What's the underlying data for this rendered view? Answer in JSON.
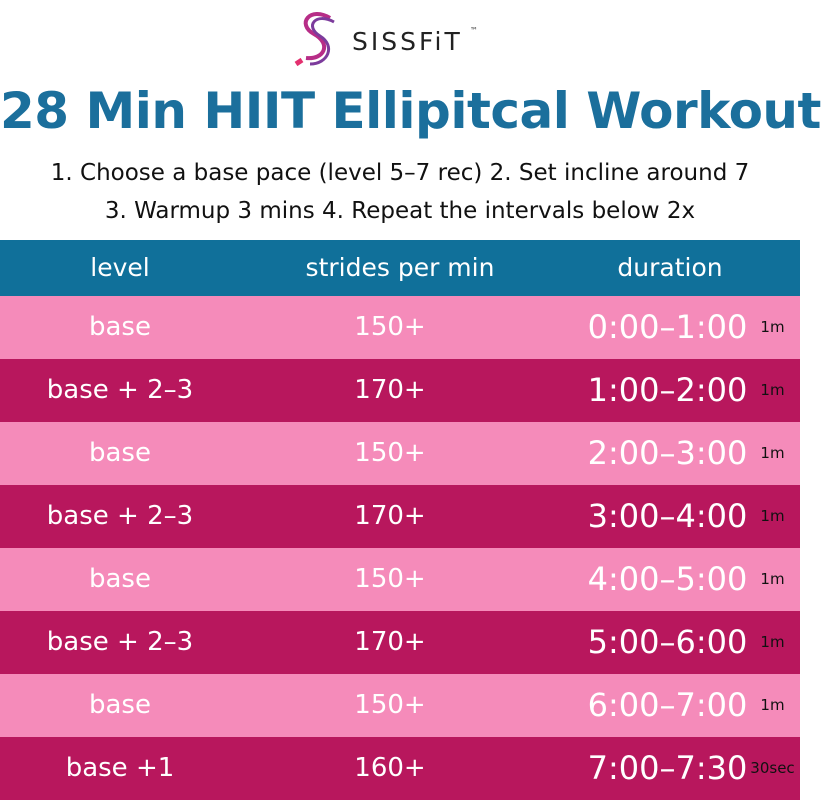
{
  "header": {
    "brand": "SISSFiT",
    "trademark": "™",
    "title": "28 Min HIIT Ellipitcal Workout",
    "instructions": [
      "1. Choose a base pace (level 5–7 rec) 2. Set incline around 7",
      "3. Warmup 3 mins  4. Repeat the intervals below 2x"
    ]
  },
  "table": {
    "columns": [
      "level",
      "strides per min",
      "duration"
    ],
    "rows": [
      [
        "base",
        "150+",
        "0:00–1:00",
        "1m"
      ],
      [
        "base + 2–3",
        "170+",
        "1:00–2:00",
        "1m"
      ],
      [
        "base",
        "150+",
        "2:00–3:00",
        "1m"
      ],
      [
        "base + 2–3",
        "170+",
        "3:00–4:00",
        "1m"
      ],
      [
        "base",
        "150+",
        "4:00–5:00",
        "1m"
      ],
      [
        "base + 2–3",
        "170+",
        "5:00–6:00",
        "1m"
      ],
      [
        "base",
        "150+",
        "6:00–7:00",
        "1m"
      ],
      [
        "base +1",
        "160+",
        "7:00–7:30",
        "30sec"
      ]
    ]
  }
}
